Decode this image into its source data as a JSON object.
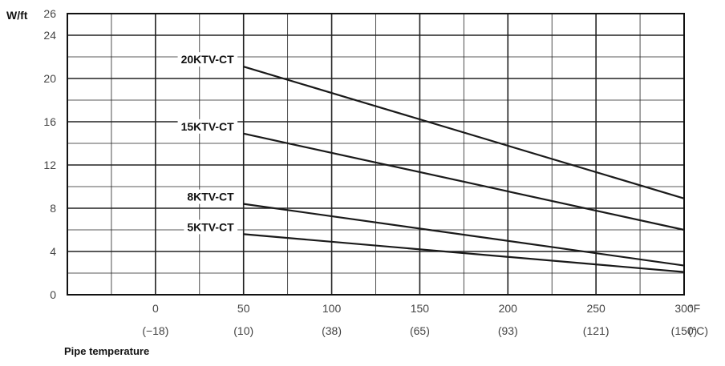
{
  "chart_data": {
    "type": "line",
    "ylabel": "W/ft",
    "xlabel": "Pipe temperature",
    "x_unit": "°F",
    "x_unit_secondary": "(°C)",
    "xlim": [
      -50,
      300
    ],
    "ylim": [
      0,
      26
    ],
    "x_ticks": [
      {
        "f": 0,
        "label": "0",
        "c_label": "(−18)"
      },
      {
        "f": 50,
        "label": "50",
        "c_label": "(10)"
      },
      {
        "f": 100,
        "label": "100",
        "c_label": "(38)"
      },
      {
        "f": 150,
        "label": "150",
        "c_label": "(65)"
      },
      {
        "f": 200,
        "label": "200",
        "c_label": "(93)"
      },
      {
        "f": 250,
        "label": "250",
        "c_label": "(121)"
      },
      {
        "f": 300,
        "label": "300",
        "c_label": "(150)"
      }
    ],
    "y_ticks": [
      "0",
      "4",
      "8",
      "12",
      "16",
      "20",
      "24",
      "26"
    ],
    "grid": true,
    "series": [
      {
        "name": "20KTV-CT",
        "x": [
          50,
          300
        ],
        "y": [
          21.1,
          8.9
        ]
      },
      {
        "name": "15KTV-CT",
        "x": [
          50,
          300
        ],
        "y": [
          14.9,
          6.0
        ]
      },
      {
        "name": "8KTV-CT",
        "x": [
          50,
          300
        ],
        "y": [
          8.4,
          2.7
        ]
      },
      {
        "name": "5KTV-CT",
        "x": [
          50,
          300
        ],
        "y": [
          5.6,
          2.1
        ]
      }
    ]
  }
}
